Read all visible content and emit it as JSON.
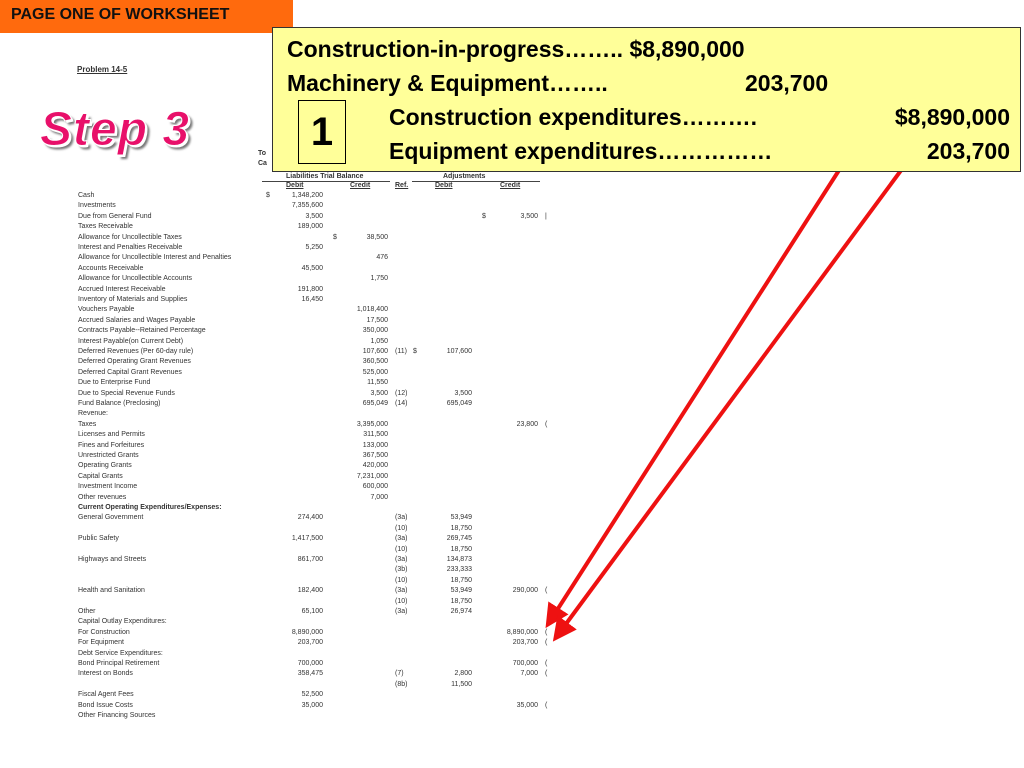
{
  "banner": "PAGE ONE OF WORKSHEET",
  "problem": "Problem 14-5",
  "step": "Step 3",
  "fragments": [
    "To",
    "Ca"
  ],
  "headers": {
    "trial_balance": "Liabilities Trial Balance",
    "adjustments": "Adjustments",
    "debit": "Debit",
    "credit": "Credit",
    "ref": "Ref.",
    "adj_debit": "Debit",
    "adj_credit": "Credit"
  },
  "rows": [
    {
      "label": "Cash",
      "d1": "$",
      "debit": "1,348,200"
    },
    {
      "label": "Investments",
      "debit": "7,355,600"
    },
    {
      "label": "Due from General Fund",
      "debit": "3,500",
      "d4": "$",
      "adj_credit": "3,500",
      "par": "|"
    },
    {
      "label": "Taxes Receivable",
      "debit": "189,000"
    },
    {
      "label": "Allowance for Uncollectible Taxes",
      "d2": "$",
      "credit": "38,500"
    },
    {
      "label": "Interest and Penalties Receivable",
      "debit": "5,250"
    },
    {
      "label": "Allowance for Uncollectible Interest and Penalties",
      "credit": "476"
    },
    {
      "label": "Accounts Receivable",
      "debit": "45,500"
    },
    {
      "label": "Allowance for Uncollectible Accounts",
      "credit": "1,750"
    },
    {
      "label": "Accrued Interest Receivable",
      "debit": "191,800"
    },
    {
      "label": "Inventory of Materials and Supplies",
      "debit": "16,450"
    },
    {
      "label": "Vouchers Payable",
      "credit": "1,018,400"
    },
    {
      "label": "Accrued Salaries and Wages Payable",
      "credit": "17,500"
    },
    {
      "label": "Contracts Payable--Retained Percentage",
      "credit": "350,000"
    },
    {
      "label": "Interest Payable(on Current Debt)",
      "credit": "1,050"
    },
    {
      "label": "Deferred Revenues (Per 60-day rule)",
      "credit": "107,600",
      "ref": "(11)",
      "d3": "$",
      "adj_debit": "107,600"
    },
    {
      "label": "Deferred Operating Grant Revenues",
      "credit": "360,500"
    },
    {
      "label": "Deferred Capital Grant Revenues",
      "credit": "525,000"
    },
    {
      "label": "Due to Enterprise Fund",
      "credit": "11,550"
    },
    {
      "label": "Due to Special Revenue Funds",
      "credit": "3,500",
      "ref": "(12)",
      "adj_debit": "3,500"
    },
    {
      "label": "Fund Balance (Preclosing)",
      "credit": "695,049",
      "ref": "(14)",
      "adj_debit": "695,049"
    },
    {
      "label": "Revenue:"
    },
    {
      "label": "Taxes",
      "credit": "3,395,000",
      "adj_credit": "23,800",
      "par": "("
    },
    {
      "label": "Licenses and Permits",
      "credit": "311,500"
    },
    {
      "label": "Fines and Forfeitures",
      "credit": "133,000"
    },
    {
      "label": "Unrestricted Grants",
      "credit": "367,500"
    },
    {
      "label": "Operating Grants",
      "credit": "420,000"
    },
    {
      "label": "Capital Grants",
      "credit": "7,231,000"
    },
    {
      "label": "Investment Income",
      "credit": "600,000"
    },
    {
      "label": "Other revenues",
      "credit": "7,000"
    },
    {
      "label": "Current Operating Expenditures/Expenses:",
      "bold": true
    },
    {
      "label": "General Government",
      "debit": "274,400",
      "ref": "(3a)",
      "adj_debit": "53,949"
    },
    {
      "ref": "(10)",
      "adj_debit": "18,750"
    },
    {
      "label": "Public Safety",
      "debit": "1,417,500",
      "ref": "(3a)",
      "adj_debit": "269,745"
    },
    {
      "ref": "(10)",
      "adj_debit": "18,750"
    },
    {
      "label": "Highways and Streets",
      "debit": "861,700",
      "ref": "(3a)",
      "adj_debit": "134,873"
    },
    {
      "ref": "(3b)",
      "adj_debit": "233,333"
    },
    {
      "ref": "(10)",
      "adj_debit": "18,750"
    },
    {
      "label": "Health and Sanitation",
      "debit": "182,400",
      "ref": "(3a)",
      "adj_debit": "53,949",
      "adj_credit": "290,000",
      "par": "("
    },
    {
      "ref": "(10)",
      "adj_debit": "18,750"
    },
    {
      "label": "Other",
      "debit": "65,100",
      "ref": "(3a)",
      "adj_debit": "26,974"
    },
    {
      "label": "Capital Outlay Expenditures:"
    },
    {
      "label": "For Construction",
      "debit": "8,890,000",
      "adj_credit": "8,890,000",
      "par": "("
    },
    {
      "label": "For Equipment",
      "debit": "203,700",
      "adj_credit": "203,700",
      "par": "("
    },
    {
      "label": "Debt Service Expenditures:"
    },
    {
      "label": "Bond Principal Retirement",
      "debit": "700,000",
      "adj_credit": "700,000",
      "par": "("
    },
    {
      "label": "Interest on Bonds",
      "debit": "358,475",
      "ref": "(7)",
      "adj_debit": "2,800",
      "adj_credit": "7,000",
      "par": "("
    },
    {
      "ref": "(8b)",
      "adj_debit": "11,500"
    },
    {
      "label": "Fiscal Agent Fees",
      "debit": "52,500"
    },
    {
      "label": "Bond Issue Costs",
      "debit": "35,000",
      "adj_credit": "35,000",
      "par": "("
    },
    {
      "label": "Other Financing Sources"
    }
  ],
  "callout": {
    "line1": "Construction-in-progress…….. $8,890,000",
    "line2_label": "Machinery & Equipment……..",
    "line2_amount": "203,700",
    "entry_number": "1",
    "line3_label": "Construction expenditures……….",
    "line3_amount": "$8,890,000",
    "line4_label": "Equipment expenditures……………",
    "line4_amount": "203,700"
  },
  "colors": {
    "banner": "#ff6a0d",
    "callout": "#ffff99",
    "step": "#e8106a",
    "arrow": "#ee1111"
  }
}
